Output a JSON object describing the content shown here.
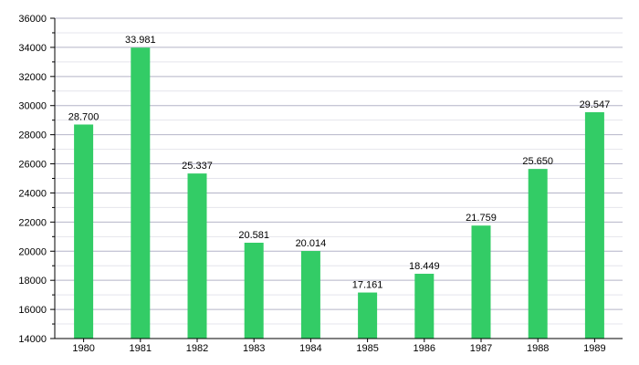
{
  "chart_data": {
    "type": "bar",
    "title": "",
    "xlabel": "",
    "ylabel": "",
    "categories": [
      "1980",
      "1981",
      "1982",
      "1983",
      "1984",
      "1985",
      "1986",
      "1987",
      "1988",
      "1989"
    ],
    "values": [
      28700,
      33981,
      25337,
      20581,
      20014,
      17161,
      18449,
      21759,
      25650,
      29547
    ],
    "data_labels": [
      "28.700",
      "33.981",
      "25.337",
      "20.581",
      "20.014",
      "17.161",
      "18.449",
      "21.759",
      "25.650",
      "29.547"
    ],
    "ylim": [
      14000,
      36000
    ],
    "yticks": [
      14000,
      16000,
      18000,
      20000,
      22000,
      24000,
      26000,
      28000,
      30000,
      32000,
      34000,
      36000
    ],
    "ytick_labels": [
      "14000",
      "16000",
      "18000",
      "20000",
      "22000",
      "24000",
      "26000",
      "28000",
      "30000",
      "32000",
      "34000",
      "36000"
    ],
    "minor_ytick_step": 1000,
    "grid": true,
    "legend": "none",
    "colors": {
      "bar": "#33cc66",
      "grid_major": "#b4b4c8",
      "grid_minor": "#e4e4ec",
      "axis": "#000000"
    }
  }
}
